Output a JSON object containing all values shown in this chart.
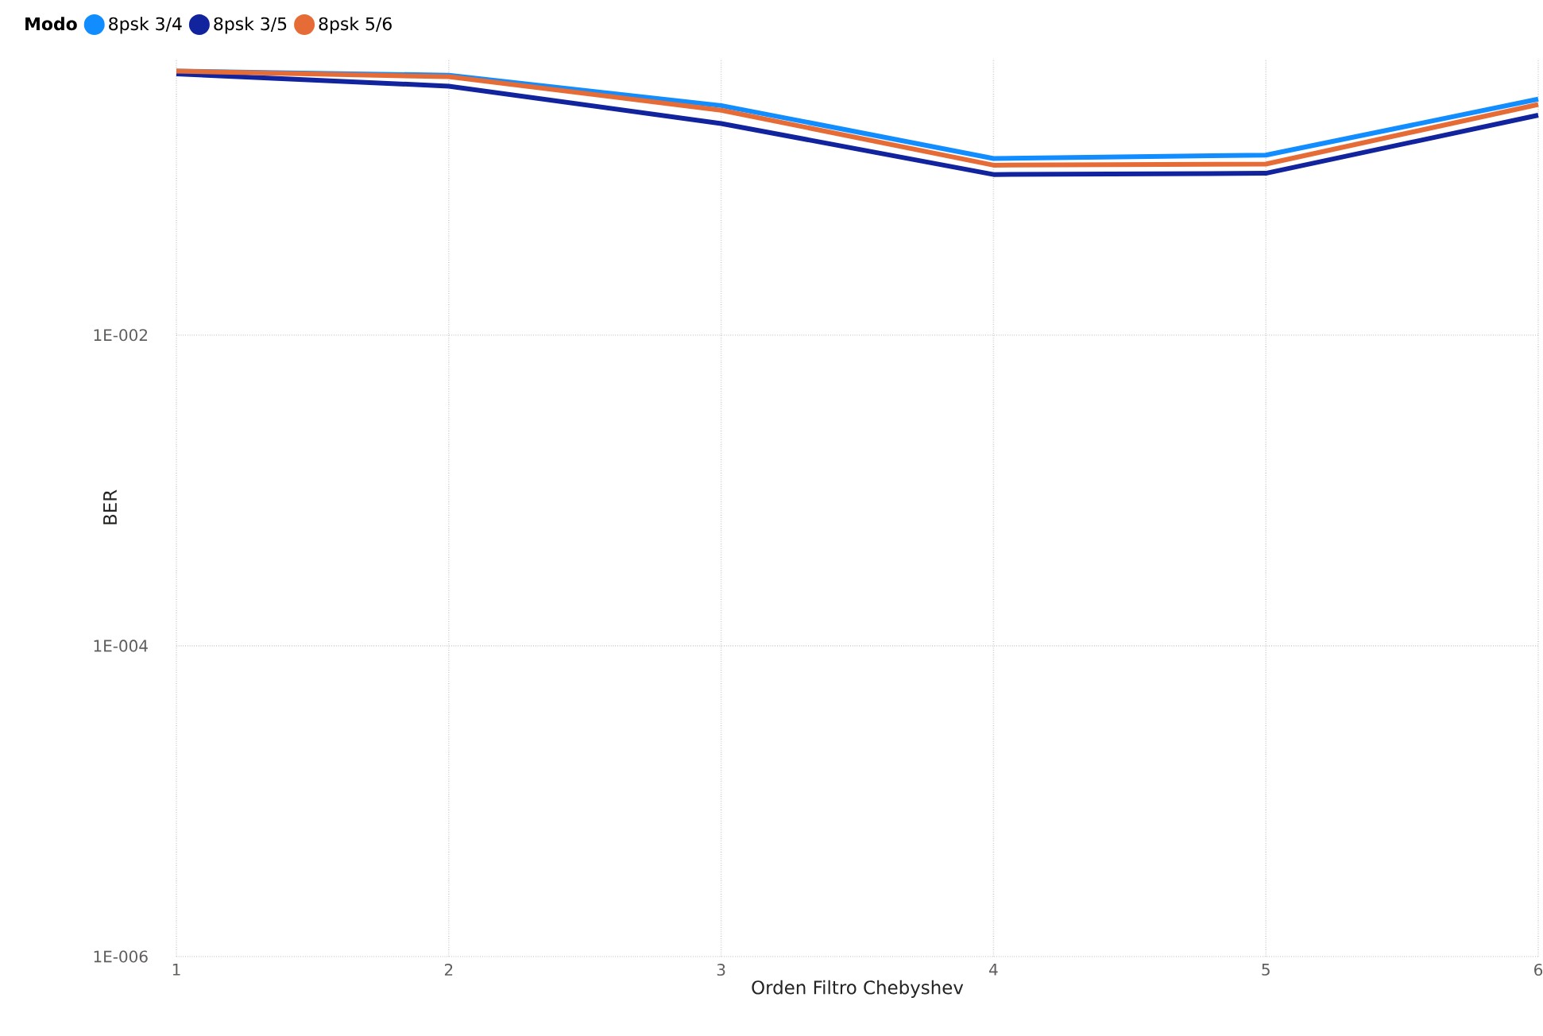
{
  "chart_data": {
    "type": "line",
    "xlabel": "Orden Filtro Chebyshev",
    "ylabel": "BER",
    "legend_title": "Modo",
    "legend": "top left",
    "grid": true,
    "log": "y",
    "x": [
      1,
      2,
      3,
      4,
      5,
      6
    ],
    "xlim": [
      1,
      6
    ],
    "xticks": [
      1,
      2,
      3,
      4,
      5,
      6
    ],
    "ylim": [
      1e-06,
      0.6
    ],
    "yticks": [
      {
        "value": 0.01,
        "label": "1E-002"
      },
      {
        "value": 0.0001,
        "label": "1E-004"
      },
      {
        "value": 1e-06,
        "label": "1E-006"
      }
    ],
    "series": [
      {
        "name": "8psk 3/4",
        "color": "#118dff",
        "values": [
          0.5,
          0.47,
          0.3,
          0.137,
          0.144,
          0.33
        ]
      },
      {
        "name": "8psk 3/5",
        "color": "#12239e",
        "values": [
          0.48,
          0.4,
          0.23,
          0.108,
          0.11,
          0.26
        ]
      },
      {
        "name": "8psk 5/6",
        "color": "#e66c37",
        "values": [
          0.5,
          0.46,
          0.28,
          0.124,
          0.126,
          0.305
        ]
      }
    ]
  }
}
